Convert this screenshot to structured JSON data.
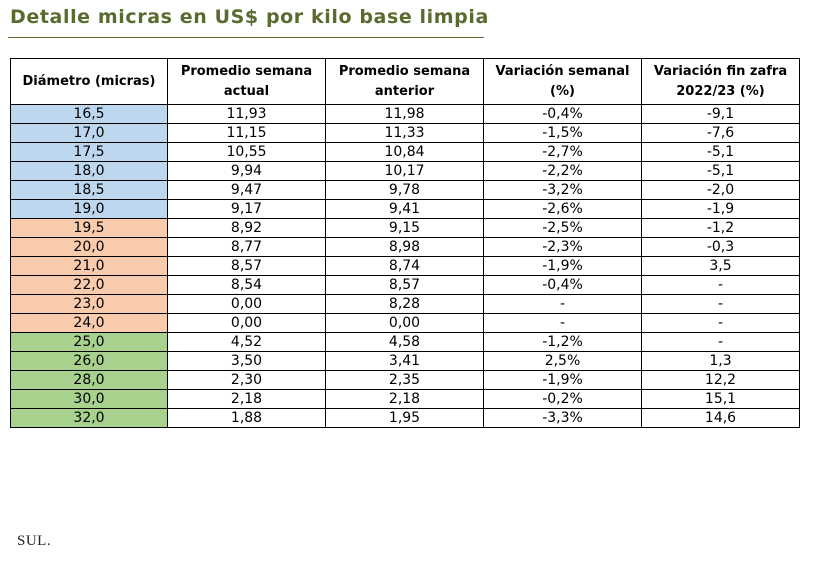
{
  "title": "Detalle micras en US$ por kilo base limpia",
  "colors": {
    "title": "#5a6b2f",
    "fine": "#bdd7ee",
    "medium": "#f8cbad",
    "coarse": "#a9d18e"
  },
  "table": {
    "headers": [
      [
        "Diámetro (micras)"
      ],
      [
        "Promedio semana",
        "actual"
      ],
      [
        "Promedio semana",
        "anterior"
      ],
      [
        "Variación semanal",
        "(%)"
      ],
      [
        "Variación fin zafra",
        "2022/23 (%)"
      ]
    ],
    "rows": [
      {
        "diametro": "16,5",
        "group": "fine",
        "actual": "11,93",
        "anterior": "11,98",
        "var_semanal": "-0,4%",
        "var_zafra": "-9,1"
      },
      {
        "diametro": "17,0",
        "group": "fine",
        "actual": "11,15",
        "anterior": "11,33",
        "var_semanal": "-1,5%",
        "var_zafra": "-7,6"
      },
      {
        "diametro": "17,5",
        "group": "fine",
        "actual": "10,55",
        "anterior": "10,84",
        "var_semanal": "-2,7%",
        "var_zafra": "-5,1"
      },
      {
        "diametro": "18,0",
        "group": "fine",
        "actual": "9,94",
        "anterior": "10,17",
        "var_semanal": "-2,2%",
        "var_zafra": "-5,1"
      },
      {
        "diametro": "18,5",
        "group": "fine",
        "actual": "9,47",
        "anterior": "9,78",
        "var_semanal": "-3,2%",
        "var_zafra": "-2,0"
      },
      {
        "diametro": "19,0",
        "group": "fine",
        "actual": "9,17",
        "anterior": "9,41",
        "var_semanal": "-2,6%",
        "var_zafra": "-1,9"
      },
      {
        "diametro": "19,5",
        "group": "medium",
        "actual": "8,92",
        "anterior": "9,15",
        "var_semanal": "-2,5%",
        "var_zafra": "-1,2"
      },
      {
        "diametro": "20,0",
        "group": "medium",
        "actual": "8,77",
        "anterior": "8,98",
        "var_semanal": "-2,3%",
        "var_zafra": "-0,3"
      },
      {
        "diametro": "21,0",
        "group": "medium",
        "actual": "8,57",
        "anterior": "8,74",
        "var_semanal": "-1,9%",
        "var_zafra": "3,5"
      },
      {
        "diametro": "22,0",
        "group": "medium",
        "actual": "8,54",
        "anterior": "8,57",
        "var_semanal": "-0,4%",
        "var_zafra": "-"
      },
      {
        "diametro": "23,0",
        "group": "medium",
        "actual": "0,00",
        "anterior": "8,28",
        "var_semanal": "-",
        "var_zafra": "-"
      },
      {
        "diametro": "24,0",
        "group": "medium",
        "actual": "0,00",
        "anterior": "0,00",
        "var_semanal": "-",
        "var_zafra": "-"
      },
      {
        "diametro": "25,0",
        "group": "coarse",
        "actual": "4,52",
        "anterior": "4,58",
        "var_semanal": "-1,2%",
        "var_zafra": "-"
      },
      {
        "diametro": "26,0",
        "group": "coarse",
        "actual": "3,50",
        "anterior": "3,41",
        "var_semanal": "2,5%",
        "var_zafra": "1,3"
      },
      {
        "diametro": "28,0",
        "group": "coarse",
        "actual": "2,30",
        "anterior": "2,35",
        "var_semanal": "-1,9%",
        "var_zafra": "12,2"
      },
      {
        "diametro": "30,0",
        "group": "coarse",
        "actual": "2,18",
        "anterior": "2,18",
        "var_semanal": "-0,2%",
        "var_zafra": "15,1"
      },
      {
        "diametro": "32,0",
        "group": "coarse",
        "actual": "1,88",
        "anterior": "1,95",
        "var_semanal": "-3,3%",
        "var_zafra": "14,6"
      }
    ]
  },
  "footer": "SUL."
}
